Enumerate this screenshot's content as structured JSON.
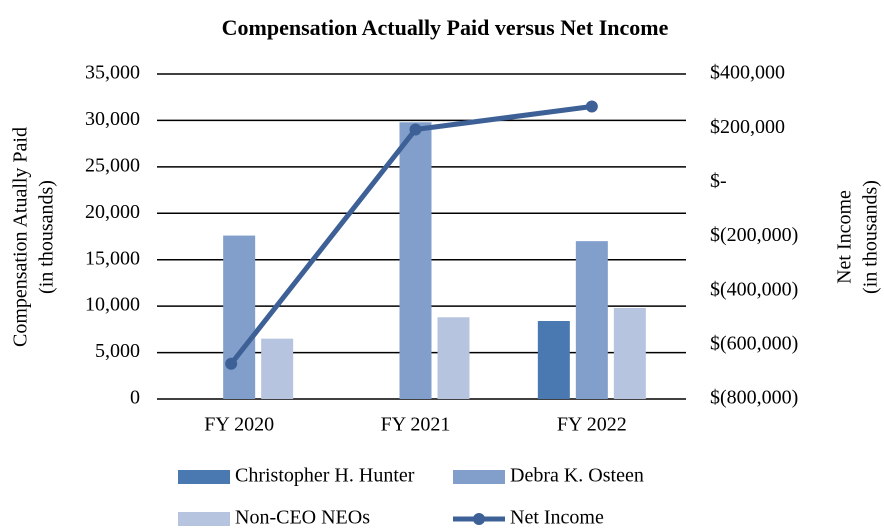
{
  "chart_data": {
    "type": "bar",
    "title": "Compensation Actually Paid versus Net Income",
    "ylabel": [
      "Compensation Atually Paid",
      "(in thousands)"
    ],
    "y2label": [
      "Net Income",
      "(in thousands)"
    ],
    "categories": [
      "FY 2020",
      "FY 2021",
      "FY 2022"
    ],
    "series": [
      {
        "name": "Christopher H. Hunter",
        "color": "#4a78b0",
        "values": [
          null,
          null,
          8400
        ]
      },
      {
        "name": "Debra K. Osteen",
        "color": "#829fcc",
        "values": [
          17600,
          29800,
          17000
        ]
      },
      {
        "name": "Non-CEO NEOs",
        "color": "#b7c4e0",
        "values": [
          6500,
          8800,
          9800
        ]
      },
      {
        "name": "Net Income",
        "color": "#3d6096",
        "type": "line",
        "axis": "y2",
        "values": [
          -670000,
          195000,
          280000
        ]
      }
    ],
    "ylim": [
      0,
      35000
    ],
    "yticks": [
      0,
      {
        "value": 5000,
        "label": "5,000"
      },
      {
        "value": 10000,
        "label": "10,000"
      },
      {
        "value": 15000,
        "label": "15,000"
      },
      {
        "value": 20000,
        "label": "20,000"
      },
      {
        "value": 25000,
        "label": "25,000"
      },
      {
        "value": 30000,
        "label": "30,000"
      },
      {
        "value": 35000,
        "label": "35,000"
      }
    ],
    "y2lim": [
      -800000,
      400000
    ],
    "y2ticks": [
      {
        "value": -800000,
        "label": "$(800,000)"
      },
      {
        "value": -600000,
        "label": "$(600,000)"
      },
      {
        "value": -400000,
        "label": "$(400,000)"
      },
      {
        "value": -200000,
        "label": "$(200,000)"
      },
      {
        "value": 0,
        "label": "$-"
      },
      {
        "value": 200000,
        "label": "$200,000"
      },
      {
        "value": 400000,
        "label": "$400,000"
      }
    ],
    "grid": true,
    "legend": "bottom"
  }
}
